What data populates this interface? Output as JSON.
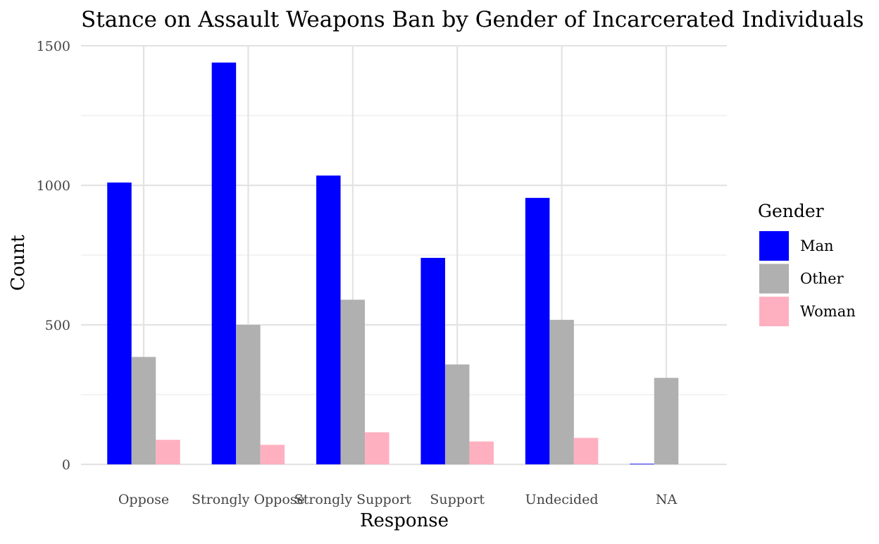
{
  "chart_data": {
    "type": "bar",
    "title": "Stance on Assault Weapons Ban by Gender of Incarcerated Individuals",
    "xlabel": "Response",
    "ylabel": "Count",
    "categories": [
      "Oppose",
      "Strongly Oppose",
      "Strongly Support",
      "Support",
      "Undecided",
      "NA"
    ],
    "series": [
      {
        "name": "Man",
        "color": "#0000ff",
        "values": [
          1010,
          1440,
          1035,
          740,
          955,
          2
        ]
      },
      {
        "name": "Other",
        "color": "#b0b0b0",
        "values": [
          385,
          500,
          590,
          358,
          518,
          310
        ]
      },
      {
        "name": "Woman",
        "color": "#ffb0c0",
        "values": [
          88,
          70,
          115,
          82,
          95,
          null
        ]
      }
    ],
    "ylim": [
      0,
      1500
    ],
    "yticks": [
      0,
      500,
      1000,
      1500
    ],
    "grid": true,
    "legend": {
      "title": "Gender",
      "position": "right"
    }
  }
}
